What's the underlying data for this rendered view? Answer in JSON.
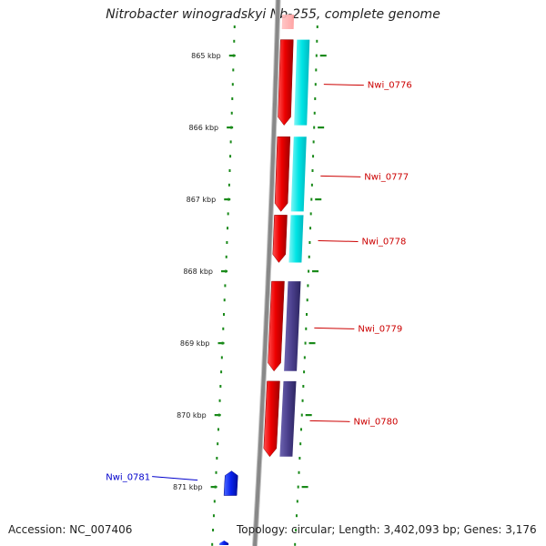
{
  "title": "Nitrobacter winogradskyi Nb-255, complete genome",
  "accession": "Accession: NC_007406",
  "topology": "Topology: circular; Length: 3,402,093 bp; Genes: 3,176",
  "ticks": [
    {
      "label": "865 kbp",
      "kbp": 865
    },
    {
      "label": "866 kbp",
      "kbp": 866
    },
    {
      "label": "867 kbp",
      "kbp": 867
    },
    {
      "label": "868 kbp",
      "kbp": 868
    },
    {
      "label": "869 kbp",
      "kbp": 869
    },
    {
      "label": "870 kbp",
      "kbp": 870
    },
    {
      "label": "871 kbp",
      "kbp": 871
    }
  ],
  "genes": [
    {
      "name": "Nwi_0776",
      "strand": "-",
      "start_kbp": 864.78,
      "end_kbp": 865.97,
      "color": "#dd0000",
      "track_color": "#00e5e5"
    },
    {
      "name": "Nwi_0777",
      "strand": "-",
      "start_kbp": 866.13,
      "end_kbp": 867.17,
      "color": "#dd0000",
      "track_color": "#00e5e5"
    },
    {
      "name": "Nwi_0778",
      "strand": "-",
      "start_kbp": 867.22,
      "end_kbp": 867.88,
      "color": "#dd0000",
      "track_color": "#00e5e5"
    },
    {
      "name": "Nwi_0779",
      "strand": "-",
      "start_kbp": 868.14,
      "end_kbp": 869.39,
      "color": "#dd0000",
      "track_color": "#4a3f8c"
    },
    {
      "name": "Nwi_0780",
      "strand": "-",
      "start_kbp": 869.53,
      "end_kbp": 870.58,
      "color": "#dd0000",
      "track_color": "#4a3f8c"
    },
    {
      "name": "Nwi_0781",
      "strand": "+",
      "start_kbp": 870.78,
      "end_kbp": 871.12,
      "color": "#0000ee"
    }
  ],
  "colors": {
    "minus_label": "#cc0000",
    "plus_label": "#0000cc",
    "tick": "#1a8a1a",
    "backbone": "#888888"
  }
}
